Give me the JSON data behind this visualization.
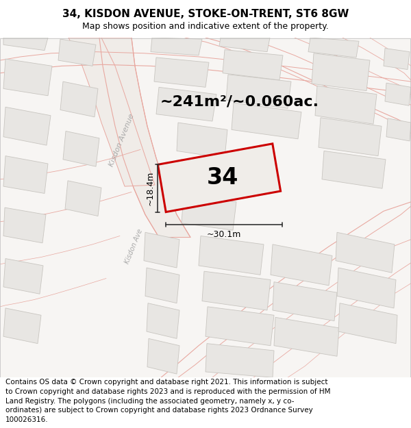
{
  "title": "34, KISDON AVENUE, STOKE-ON-TRENT, ST6 8GW",
  "subtitle": "Map shows position and indicative extent of the property.",
  "area_text": "~241m²/~0.060ac.",
  "label": "34",
  "dim1": "~18.4m",
  "dim2": "~30.1m",
  "map_bg": "#f7f5f3",
  "building_fill": "#e8e6e3",
  "building_edge": "#c8c5c0",
  "road_edge": "#e8a8a0",
  "road_fill": "#f0ece8",
  "property_fill": "#f0ede9",
  "property_edge": "#cc0000",
  "dim_color": "#333333",
  "road_label_color": "#aaaaaa",
  "footer_text": "Contains OS data © Crown copyright and database right 2021. This information is subject to Crown copyright and database rights 2023 and is reproduced with the permission of HM Land Registry. The polygons (including the associated geometry, namely x, y co-ordinates) are subject to Crown copyright and database rights 2023 Ordnance Survey 100026316.",
  "title_fontsize": 11,
  "subtitle_fontsize": 9,
  "area_fontsize": 16,
  "label_fontsize": 24,
  "footer_fontsize": 7.5
}
